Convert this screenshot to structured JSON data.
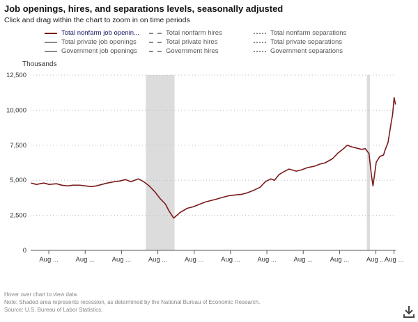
{
  "header": {
    "title": "Job openings, hires, and separations levels, seasonally adjusted",
    "subtitle": "Click and drag within the chart to zoom in on time periods"
  },
  "legend": [
    {
      "label": "Total nonfarm job openin...",
      "style": "solid",
      "color": "#7a1a1a",
      "active": true
    },
    {
      "label": "Total nonfarm hires",
      "style": "dash",
      "color": "#8a8a8a"
    },
    {
      "label": "Total nonfarm separations",
      "style": "dot",
      "color": "#8a8a8a"
    },
    {
      "label": "Total private job openings",
      "style": "solid-gray",
      "color": "#8a8a8a"
    },
    {
      "label": "Total private hires",
      "style": "dash",
      "color": "#8a8a8a"
    },
    {
      "label": "Total private separations",
      "style": "dot",
      "color": "#8a8a8a"
    },
    {
      "label": "Government job openings",
      "style": "solid-gray",
      "color": "#8a8a8a"
    },
    {
      "label": "Government hires",
      "style": "dash",
      "color": "#8a8a8a"
    },
    {
      "label": "Government separations",
      "style": "dot",
      "color": "#8a8a8a"
    }
  ],
  "footer": {
    "hover": "Hover over chart to view data.",
    "note": "Note: Shaded area represents recession, as determined by the National Bureau of Economic Research.",
    "source": "Source: U.S. Bureau of Labor Statistics."
  },
  "icons": {
    "download": "download-icon"
  },
  "chart_data": {
    "type": "line",
    "title": "Job openings, hires, and separations levels, seasonally adjusted",
    "ylabel": "Thousands",
    "xlabel": "",
    "ylim": [
      0,
      12500
    ],
    "xlim": [
      2001.58,
      2021.67
    ],
    "yticks": [
      0,
      2500,
      5000,
      7500,
      10000,
      12500
    ],
    "ytick_labels": [
      "0",
      "2,500",
      "5,000",
      "7,500",
      "10,000",
      "12,500"
    ],
    "xticks": [
      2002.58,
      2004.58,
      2006.58,
      2008.58,
      2010.58,
      2012.58,
      2014.58,
      2016.58,
      2018.58,
      2020.58,
      2021.58
    ],
    "xtick_labels": [
      "Aug ...",
      "Aug ...",
      "Aug ...",
      "Aug ...",
      "Aug ...",
      "Aug ...",
      "Aug ...",
      "Aug ...",
      "Aug ...",
      "Aug ...",
      "Aug ..."
    ],
    "grid": true,
    "recessions": [
      [
        2007.92,
        2009.5
      ],
      [
        2020.08,
        2020.25
      ]
    ],
    "series": [
      {
        "name": "Total nonfarm job openings",
        "color": "#7a1a1a",
        "x": [
          2001.6,
          2001.9,
          2002.3,
          2002.6,
          2003.0,
          2003.3,
          2003.6,
          2003.9,
          2004.3,
          2004.6,
          2004.9,
          2005.2,
          2005.5,
          2005.8,
          2006.2,
          2006.5,
          2006.8,
          2007.1,
          2007.5,
          2007.8,
          2008.1,
          2008.4,
          2008.7,
          2009.0,
          2009.2,
          2009.45,
          2009.8,
          2010.2,
          2010.5,
          2010.8,
          2011.2,
          2011.5,
          2011.8,
          2012.2,
          2012.5,
          2012.8,
          2013.2,
          2013.5,
          2013.8,
          2014.2,
          2014.5,
          2014.8,
          2015.0,
          2015.25,
          2015.5,
          2015.8,
          2016.2,
          2016.5,
          2016.8,
          2017.2,
          2017.5,
          2017.8,
          2018.2,
          2018.5,
          2018.8,
          2019.0,
          2019.2,
          2019.5,
          2019.8,
          2020.0,
          2020.2,
          2020.33,
          2020.42,
          2020.6,
          2020.8,
          2021.0,
          2021.1,
          2021.25,
          2021.42,
          2021.5,
          2021.58,
          2021.66
        ],
        "values": [
          4800,
          4700,
          4800,
          4700,
          4750,
          4650,
          4600,
          4650,
          4650,
          4600,
          4550,
          4600,
          4700,
          4800,
          4900,
          4950,
          5050,
          4900,
          5100,
          4900,
          4600,
          4200,
          3700,
          3300,
          2800,
          2300,
          2700,
          3000,
          3100,
          3250,
          3450,
          3550,
          3650,
          3800,
          3900,
          3950,
          4000,
          4100,
          4250,
          4500,
          4900,
          5100,
          5000,
          5400,
          5600,
          5800,
          5650,
          5750,
          5900,
          6000,
          6150,
          6250,
          6550,
          6950,
          7250,
          7500,
          7400,
          7300,
          7200,
          7250,
          6900,
          5400,
          4600,
          6300,
          6700,
          6800,
          7200,
          7700,
          9100,
          9700,
          10900,
          10400
        ]
      }
    ]
  }
}
